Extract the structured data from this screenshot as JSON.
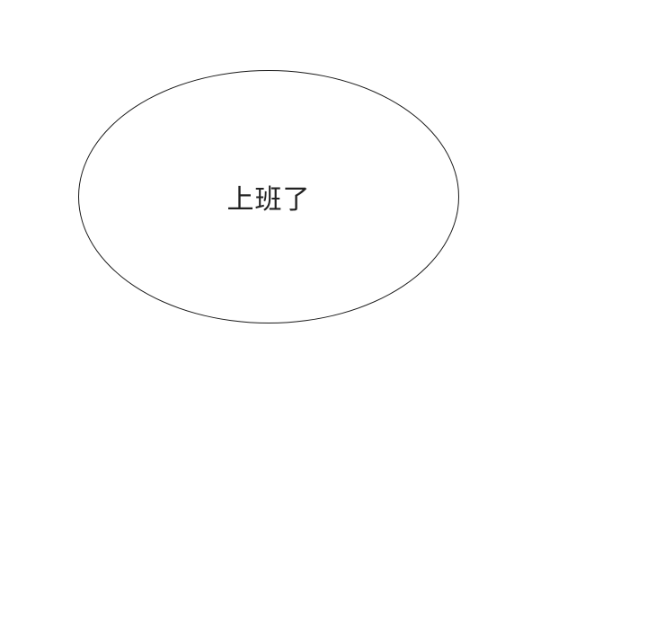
{
  "speech_bubble": {
    "text": "上班了"
  }
}
